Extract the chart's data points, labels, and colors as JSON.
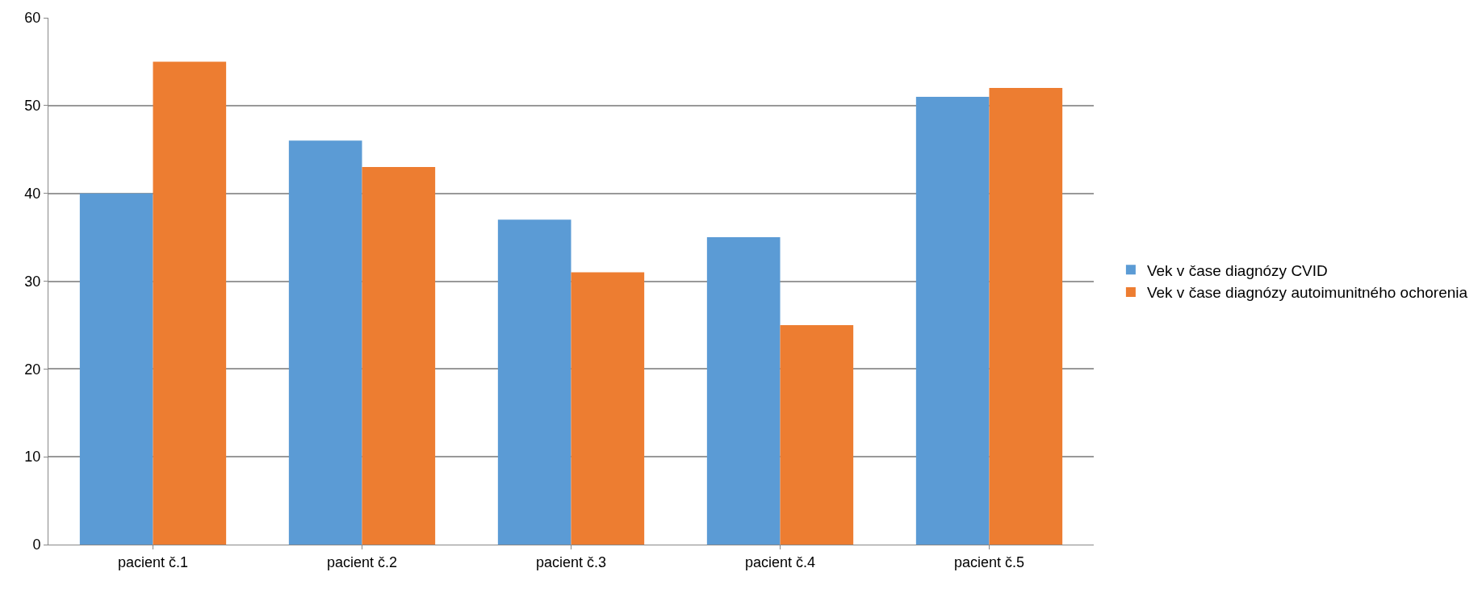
{
  "chart_data": {
    "type": "bar",
    "categories": [
      "pacient č.1",
      "pacient č.2",
      "pacient č.3",
      "pacient č.4",
      "pacient č.5"
    ],
    "series": [
      {
        "name": "Vek v čase diagnózy CVID",
        "color": "#5b9bd5",
        "values": [
          40,
          46,
          37,
          35,
          51
        ]
      },
      {
        "name": "Vek v čase diagnózy autoimunitného ochorenia",
        "color": "#ed7d31",
        "values": [
          55,
          43,
          31,
          25,
          52
        ]
      }
    ],
    "ylim": [
      0,
      60
    ],
    "yticks": [
      0,
      10,
      20,
      30,
      40,
      50,
      60
    ],
    "grid": "y",
    "legend": "right"
  }
}
